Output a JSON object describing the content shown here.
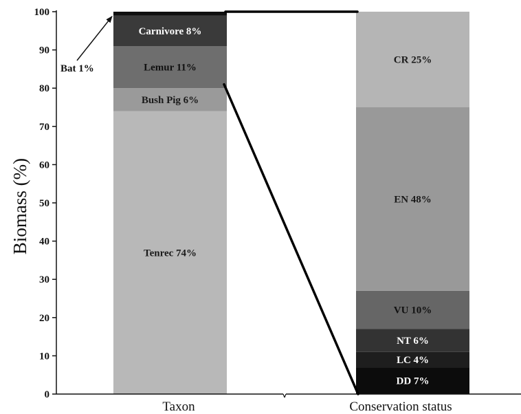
{
  "chart_data": {
    "type": "bar",
    "stacked": true,
    "ylabel": "Biomass (%)",
    "ylim": [
      0,
      100
    ],
    "yticks": [
      0,
      10,
      20,
      30,
      40,
      50,
      60,
      70,
      80,
      90,
      100
    ],
    "categories": [
      "Taxon",
      "Conservation status"
    ],
    "bars": [
      {
        "category": "Taxon",
        "segments": [
          {
            "label": "Tenrec 74%",
            "value": 74,
            "color": "#b8b8b8",
            "text_color": "#1a1a1a"
          },
          {
            "label": "Bush Pig 6%",
            "value": 6,
            "color": "#9a9a9a",
            "text_color": "#1a1a1a"
          },
          {
            "label": "Lemur 11%",
            "value": 11,
            "color": "#6e6e6e",
            "text_color": "#111111"
          },
          {
            "label": "Carnivore 8%",
            "value": 8,
            "color": "#3a3a3a",
            "text_color": "#ffffff"
          },
          {
            "label": "Bat 1%",
            "value": 1,
            "color": "#101010",
            "text_color": "#111111"
          }
        ]
      },
      {
        "category": "Conservation status",
        "segments": [
          {
            "label": "DD 7%",
            "value": 7,
            "color": "#0c0c0c",
            "text_color": "#ffffff"
          },
          {
            "label": "LC 4%",
            "value": 4,
            "color": "#1e1e1e",
            "text_color": "#ffffff"
          },
          {
            "label": "NT 6%",
            "value": 6,
            "color": "#333333",
            "text_color": "#ffffff"
          },
          {
            "label": "VU 10%",
            "value": 10,
            "color": "#666666",
            "text_color": "#111111"
          },
          {
            "label": "EN 48%",
            "value": 48,
            "color": "#999999",
            "text_color": "#1a1a1a"
          },
          {
            "label": "CR 25%",
            "value": 25,
            "color": "#b5b5b5",
            "text_color": "#1a1a1a"
          }
        ]
      }
    ],
    "annotations": [
      {
        "label": "Bat 1%",
        "points_to": "Bat 1%"
      }
    ],
    "connectors": [
      {
        "from_bar": "Taxon",
        "from_y": 100,
        "to_bar": "Conservation status",
        "to_y": 100
      },
      {
        "from_bar": "Taxon",
        "from_y": 81,
        "to_bar": "Conservation status",
        "to_y": 0
      }
    ]
  }
}
